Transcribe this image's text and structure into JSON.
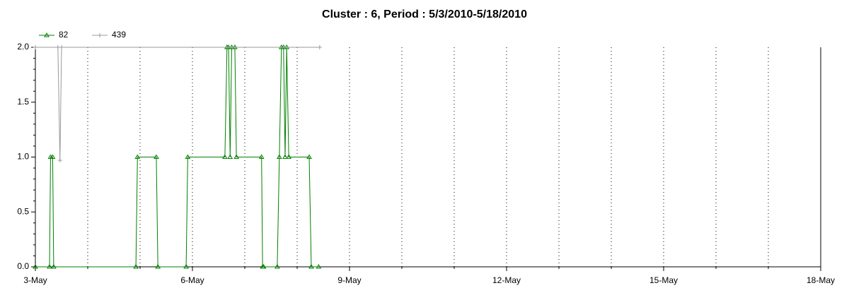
{
  "chart_data": {
    "type": "line",
    "title": "Cluster : 6, Period : 5/3/2010-5/18/2010",
    "xlim": [
      3,
      18
    ],
    "xticks": [
      {
        "value": 3,
        "label": "3-May"
      },
      {
        "value": 6,
        "label": "6-May"
      },
      {
        "value": 9,
        "label": "9-May"
      },
      {
        "value": 12,
        "label": "12-May"
      },
      {
        "value": 15,
        "label": "15-May"
      },
      {
        "value": 18,
        "label": "18-May"
      }
    ],
    "xminorticks": [
      4,
      5,
      7,
      8,
      10,
      11,
      13,
      14,
      16,
      17
    ],
    "ylim": [
      0,
      2
    ],
    "yticks": [
      {
        "value": 0,
        "label": "0.0"
      },
      0.5,
      {
        "value": 1,
        "label": "1.0"
      },
      1.5,
      {
        "value": 2,
        "label": "2.0"
      }
    ],
    "yminorticks": [
      0.1,
      0.2,
      0.3,
      0.4,
      0.6,
      0.7,
      0.8,
      0.9,
      1.1,
      1.2,
      1.3,
      1.4,
      1.6,
      1.7,
      1.8,
      1.9
    ],
    "grid": true,
    "legend": "top-left",
    "series": [
      {
        "name": "82",
        "color": "#008000",
        "marker": "triangle",
        "x": [
          3.0,
          3.27,
          3.29,
          3.33,
          3.35,
          4.92,
          4.95,
          5.31,
          5.34,
          5.88,
          5.91,
          6.62,
          6.66,
          6.69,
          6.72,
          6.75,
          6.81,
          6.84,
          7.32,
          7.34,
          7.36,
          7.62,
          7.66,
          7.7,
          7.74,
          7.77,
          7.8,
          7.84,
          8.23,
          8.27,
          8.41
        ],
        "values": [
          0,
          0,
          1,
          1,
          0,
          0,
          1,
          1,
          0,
          0,
          1,
          1,
          2,
          2,
          1,
          2,
          2,
          1,
          1,
          0,
          0,
          0,
          1,
          2,
          2,
          1,
          2,
          1,
          1,
          0,
          0
        ]
      },
      {
        "name": "439",
        "color": "#999999",
        "marker": "plus",
        "x": [
          3.0,
          3.43,
          3.47,
          3.5,
          8.43
        ],
        "values": [
          2,
          2,
          0.97,
          2,
          2
        ]
      }
    ]
  }
}
